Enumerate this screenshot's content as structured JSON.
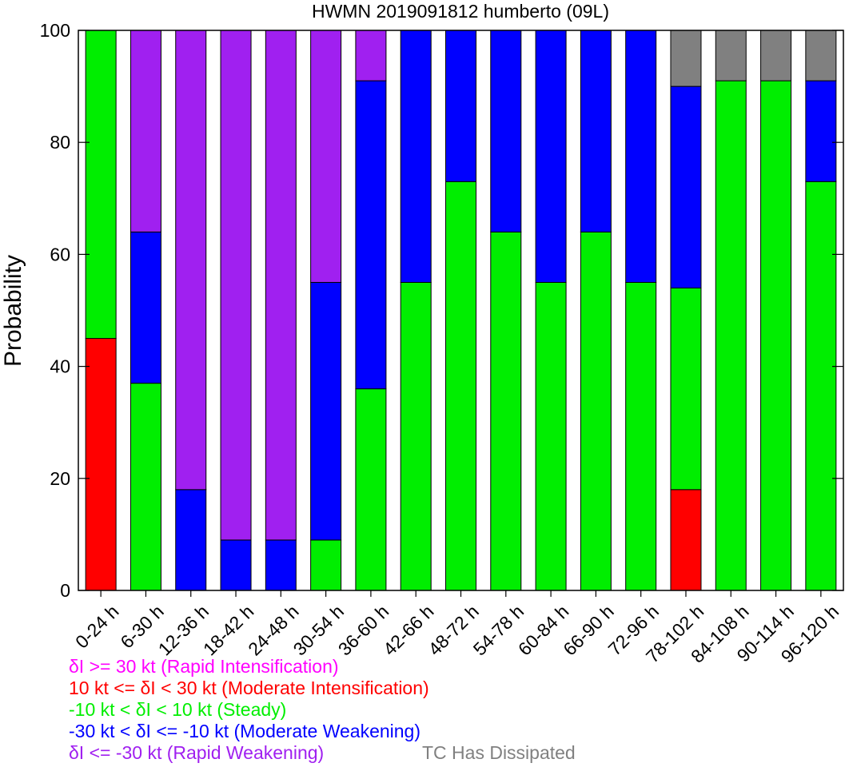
{
  "chart_data": {
    "type": "bar",
    "stacked": true,
    "title": "HWMN 2019091812 humberto (09L)",
    "ylabel": "Probability",
    "xlabel": "",
    "ylim": [
      0,
      100
    ],
    "yticks": [
      "0",
      "20",
      "40",
      "60",
      "80",
      "100"
    ],
    "grid": false,
    "legend_placement": "bottom",
    "categories": [
      "0-24 h",
      "6-30 h",
      "12-36 h",
      "18-42 h",
      "24-48 h",
      "30-54 h",
      "36-60 h",
      "42-66 h",
      "48-72 h",
      "54-78 h",
      "60-84 h",
      "66-90 h",
      "72-96 h",
      "78-102 h",
      "84-108 h",
      "90-114 h",
      "96-120 h"
    ],
    "series": [
      {
        "name": "10 kt <= δI < 30 kt (Moderate Intensification)",
        "color": "#ff0000",
        "values": [
          45,
          0,
          0,
          0,
          0,
          0,
          0,
          0,
          0,
          0,
          0,
          0,
          0,
          18,
          0,
          0,
          0
        ]
      },
      {
        "name": "-10 kt < δI < 10 kt (Steady)",
        "color": "#00ee00",
        "values": [
          55,
          37,
          0,
          0,
          0,
          9,
          36,
          55,
          73,
          64,
          55,
          64,
          55,
          36,
          91,
          91,
          73
        ]
      },
      {
        "name": "-30 kt < δI <= -10 kt (Moderate Weakening)",
        "color": "#0000ff",
        "values": [
          0,
          27,
          18,
          9,
          9,
          46,
          55,
          45,
          27,
          36,
          45,
          36,
          45,
          36,
          0,
          0,
          18
        ]
      },
      {
        "name": "δI <= -30 kt (Rapid Weakening)",
        "color": "#a020f0",
        "values": [
          0,
          36,
          82,
          91,
          91,
          45,
          9,
          0,
          0,
          0,
          0,
          0,
          0,
          0,
          0,
          0,
          0
        ]
      },
      {
        "name": "TC Has Dissipated",
        "color": "#808080",
        "values": [
          0,
          0,
          0,
          0,
          0,
          0,
          0,
          0,
          0,
          0,
          0,
          0,
          0,
          10,
          9,
          9,
          9
        ]
      },
      {
        "name": "δI >= 30 kt (Rapid Intensification)",
        "color": "#ff00ff",
        "values": [
          0,
          0,
          0,
          0,
          0,
          0,
          0,
          0,
          0,
          0,
          0,
          0,
          0,
          0,
          0,
          0,
          0
        ]
      }
    ]
  },
  "legend": {
    "ri": "δI >= 30 kt (Rapid Intensification)",
    "mi": "10 kt <= δI < 30 kt (Moderate Intensification)",
    "steady": "-10 kt < δI < 10 kt (Steady)",
    "mw": "-30 kt < δI <= -10 kt (Moderate Weakening)",
    "rw": "δI <= -30 kt (Rapid Weakening)",
    "dissipated": "TC Has Dissipated"
  },
  "colors": {
    "ri": "#ff00ff",
    "mi": "#ff0000",
    "steady": "#00ee00",
    "mw": "#0000ff",
    "rw": "#a020f0",
    "dissipated": "#808080"
  }
}
